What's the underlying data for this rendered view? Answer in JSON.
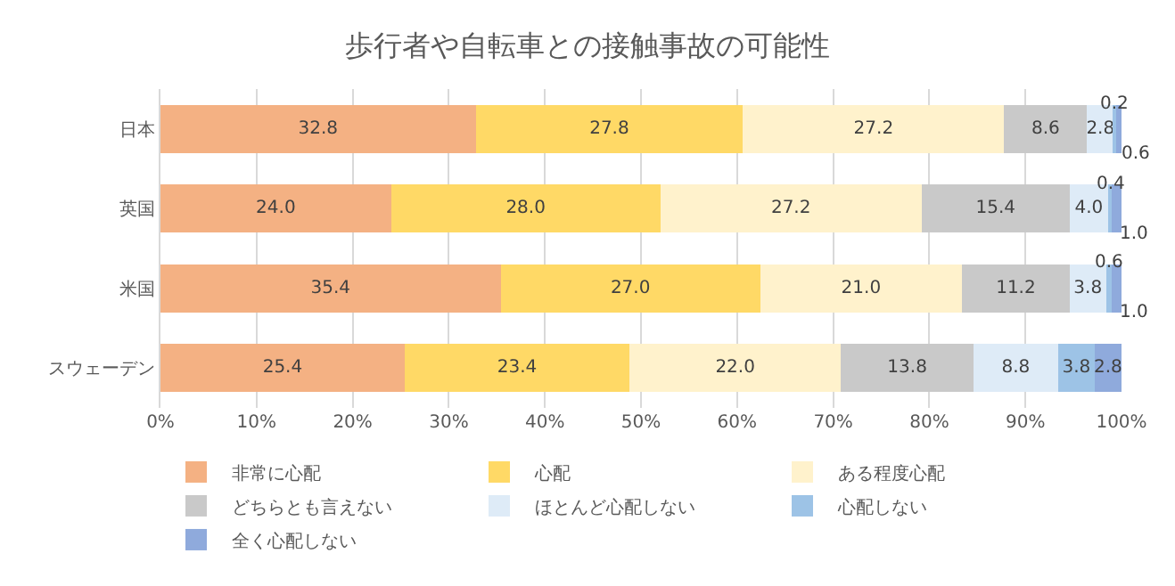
{
  "chart_data": {
    "type": "bar",
    "title": "歩行者や自転車との接触事故の可能性",
    "orientation": "horizontal",
    "stacked": true,
    "grid": "x",
    "legend": "bottom",
    "categories": [
      "日本",
      "英国",
      "米国",
      "スウェーデン"
    ],
    "xlim": [
      0,
      100
    ],
    "xticks": [
      {
        "value": 0,
        "label": "0%"
      },
      {
        "value": 10,
        "label": "10%"
      },
      {
        "value": 20,
        "label": "20%"
      },
      {
        "value": 30,
        "label": "30%"
      },
      {
        "value": 40,
        "label": "40%"
      },
      {
        "value": 50,
        "label": "50%"
      },
      {
        "value": 60,
        "label": "60%"
      },
      {
        "value": 70,
        "label": "70%"
      },
      {
        "value": 80,
        "label": "80%"
      },
      {
        "value": 90,
        "label": "90%"
      },
      {
        "value": 100,
        "label": "100%"
      }
    ],
    "series": [
      {
        "name": "非常に心配",
        "color": "#f4b183",
        "values": [
          32.8,
          24.0,
          35.4,
          25.4
        ],
        "value_labels": [
          "32.8",
          "24.0",
          "35.4",
          "25.4"
        ]
      },
      {
        "name": "心配",
        "color": "#ffd966",
        "values": [
          27.8,
          28.0,
          27.0,
          23.4
        ],
        "value_labels": [
          "27.8",
          "28.0",
          "27.0",
          "23.4"
        ]
      },
      {
        "name": "ある程度心配",
        "color": "#fff2cc",
        "values": [
          27.2,
          27.2,
          21.0,
          22.0
        ],
        "value_labels": [
          "27.2",
          "27.2",
          "21.0",
          "22.0"
        ]
      },
      {
        "name": "どちらとも言えない",
        "color": "#c9c9c9",
        "values": [
          8.6,
          15.4,
          11.2,
          13.8
        ],
        "value_labels": [
          "8.6",
          "15.4",
          "11.2",
          "13.8"
        ]
      },
      {
        "name": "ほとんど心配しない",
        "color": "#deebf7",
        "values": [
          2.8,
          4.0,
          3.8,
          8.8
        ],
        "value_labels": [
          "2.8",
          "4.0",
          "3.8",
          "8.8"
        ]
      },
      {
        "name": "心配しない",
        "color": "#9dc3e6",
        "values": [
          0.2,
          0.4,
          0.6,
          3.8
        ],
        "value_labels": [
          "0.2",
          "0.4",
          "0.6",
          "3.8"
        ]
      },
      {
        "name": "全く心配しない",
        "color": "#8faadc",
        "values": [
          0.6,
          1.0,
          1.0,
          2.8
        ],
        "value_labels": [
          "0.6",
          "1.0",
          "1.0",
          "2.8"
        ]
      }
    ]
  }
}
